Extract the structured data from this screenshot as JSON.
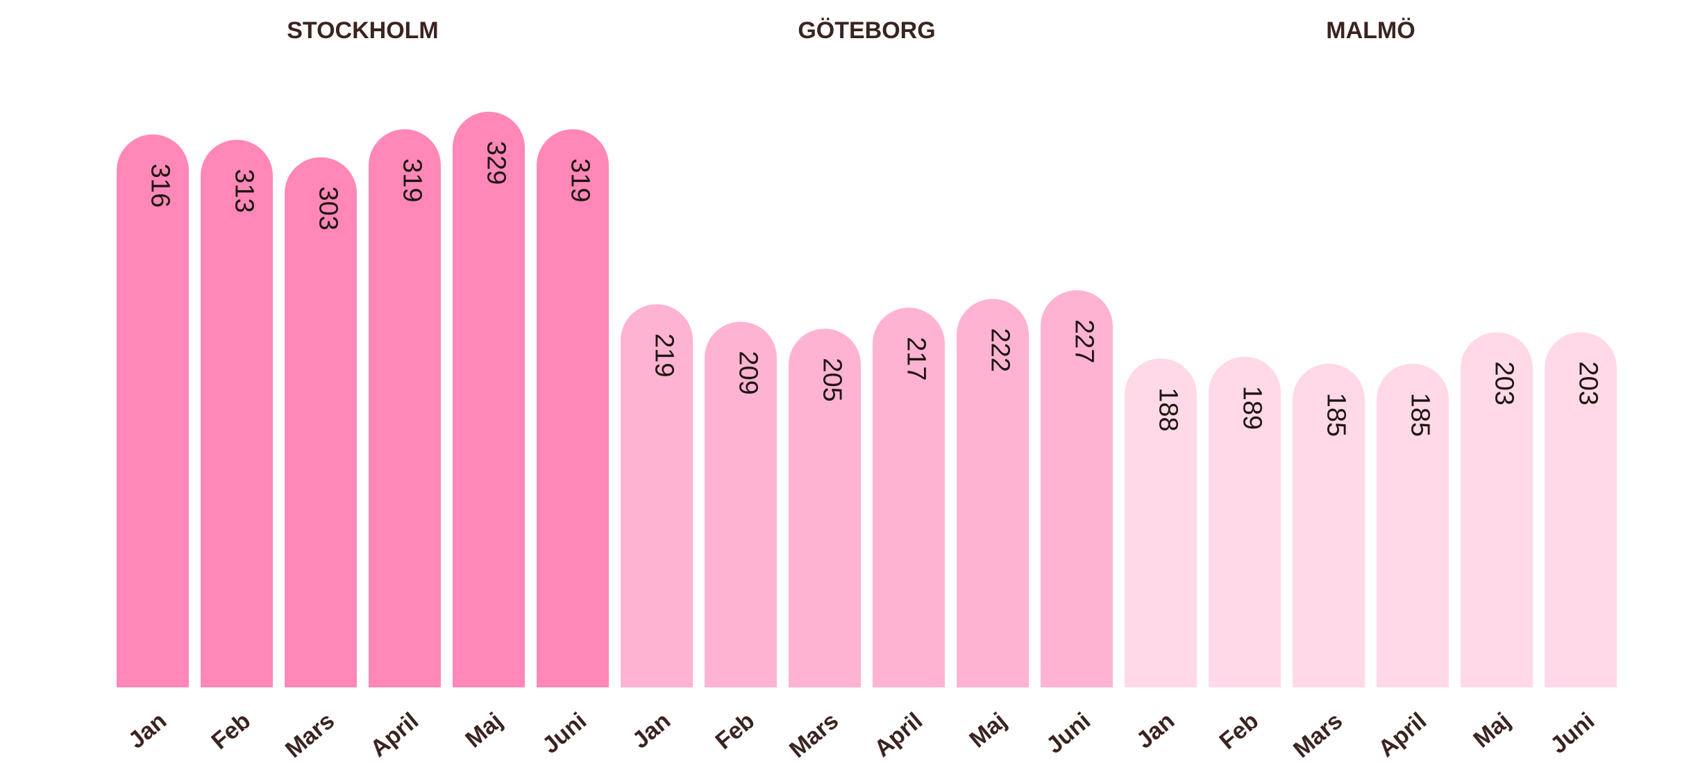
{
  "chart_data": {
    "type": "bar",
    "groups": [
      {
        "name": "STOCKHOLM",
        "color": "#ff88b8",
        "categories": [
          "Jan",
          "Feb",
          "Mars",
          "April",
          "Maj",
          "Juni"
        ],
        "values": [
          316,
          313,
          303,
          319,
          329,
          319
        ]
      },
      {
        "name": "GÖTEBORG",
        "color": "#ffb3d2",
        "categories": [
          "Jan",
          "Feb",
          "Mars",
          "April",
          "Maj",
          "Juni"
        ],
        "values": [
          219,
          209,
          205,
          217,
          222,
          227
        ]
      },
      {
        "name": "MALMÖ",
        "color": "#ffd9e7",
        "categories": [
          "Jan",
          "Feb",
          "Mars",
          "April",
          "Maj",
          "Juni"
        ],
        "values": [
          188,
          189,
          185,
          185,
          203,
          203
        ]
      }
    ],
    "ylim": [
      0,
      340
    ],
    "grid": false,
    "legend": "none"
  }
}
